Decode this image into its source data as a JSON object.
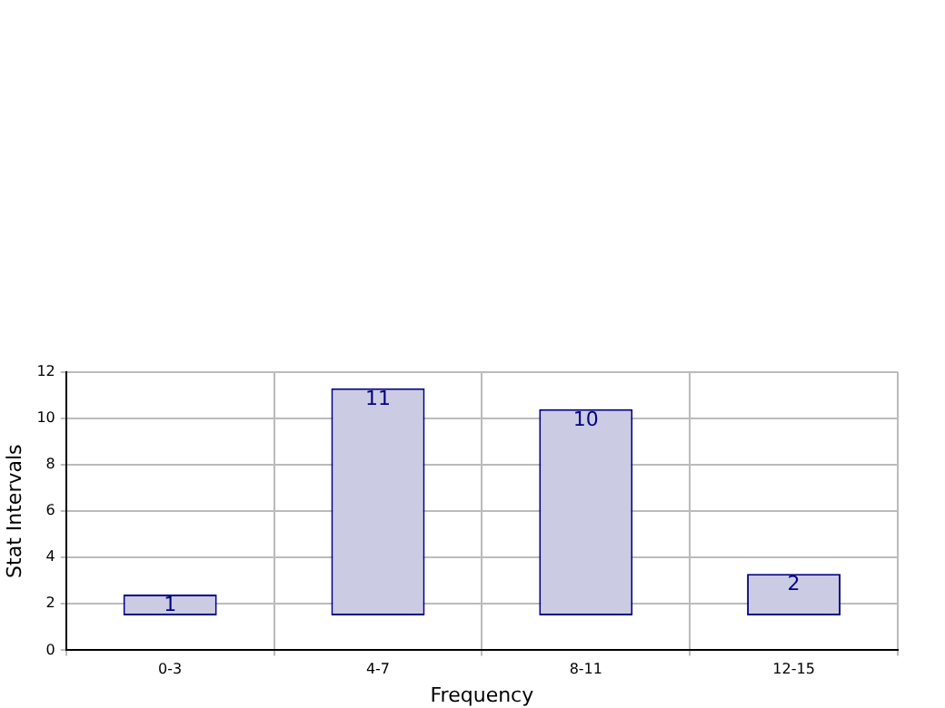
{
  "chart_data": {
    "type": "bar",
    "xlabel": "Frequency",
    "ylabel": "Stat Intervals",
    "categories": [
      "0-3",
      "4-7",
      "8-11",
      "12-15"
    ],
    "values": [
      0.9,
      9.8,
      8.9,
      1.8
    ],
    "base": [
      1.5,
      1.5,
      1.5,
      1.5
    ],
    "value_labels": [
      "1",
      "11",
      "10",
      "2"
    ],
    "color": "#cbcbe4",
    "ylim": [
      0,
      12
    ],
    "yticks": [
      0,
      2,
      4,
      6,
      8,
      10,
      12
    ],
    "grid": true
  }
}
